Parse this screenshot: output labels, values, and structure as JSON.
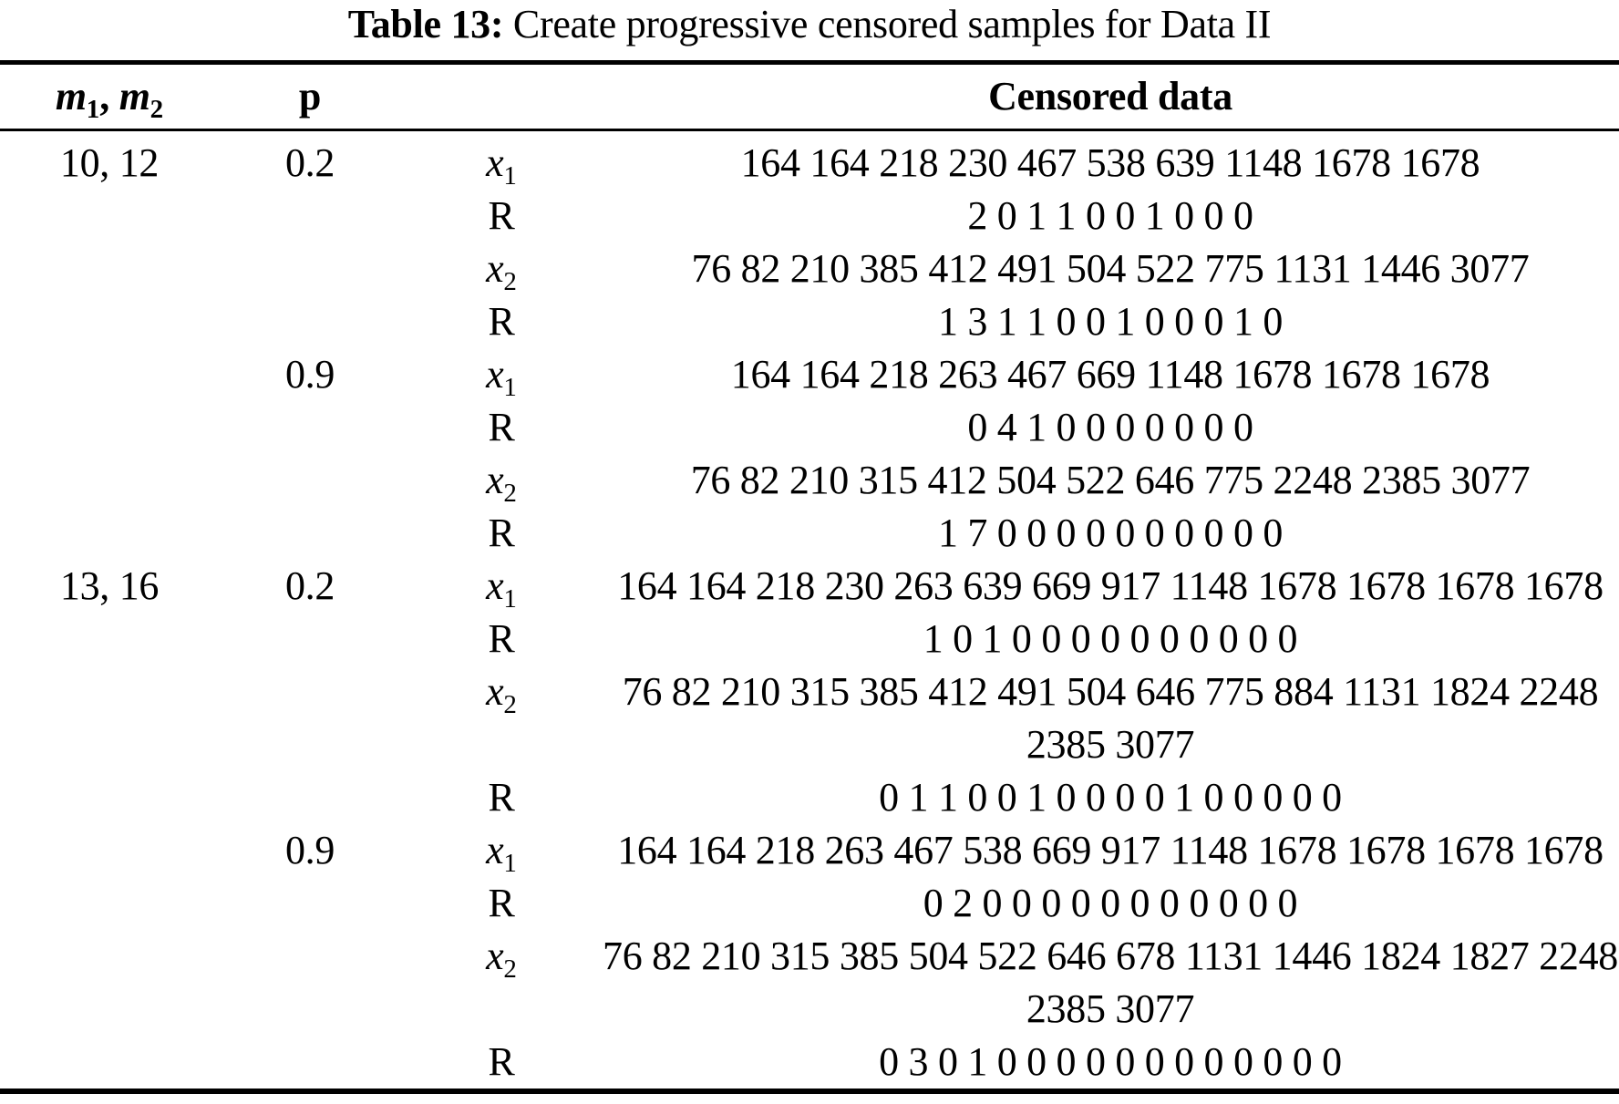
{
  "colors": {
    "text": "#000000",
    "background": "#ffffff"
  },
  "title": {
    "bold": "Table 13:",
    "rest": " Create progressive censored samples for Data II"
  },
  "header": {
    "m_base1": "m",
    "m_sub1": "1",
    "m_sep": ", ",
    "m_base2": "m",
    "m_sub2": "2",
    "p": "p",
    "censored": "Censored data"
  },
  "groups": [
    {
      "m": "10, 12",
      "subgroups": [
        {
          "p": "0.2",
          "rows": [
            {
              "var": "x",
              "sub": "1",
              "line1": "164 164 218 230 467 538 639 1148 1678 1678"
            },
            {
              "var": "R",
              "sub": "",
              "line1": "2 0 1 1 0 0 1 0 0 0"
            },
            {
              "var": "x",
              "sub": "2",
              "line1": "76 82 210 385 412 491 504 522 775 1131 1446 3077"
            },
            {
              "var": "R",
              "sub": "",
              "line1": "1 3 1 1 0 0 1 0 0 0 1 0"
            }
          ]
        },
        {
          "p": "0.9",
          "rows": [
            {
              "var": "x",
              "sub": "1",
              "line1": "164 164 218 263 467 669 1148 1678 1678 1678"
            },
            {
              "var": "R",
              "sub": "",
              "line1": "0 4 1 0 0 0 0 0 0 0"
            },
            {
              "var": "x",
              "sub": "2",
              "line1": "76 82 210 315 412 504 522 646 775 2248 2385 3077"
            },
            {
              "var": "R",
              "sub": "",
              "line1": "1 7 0 0 0 0 0 0 0 0 0 0"
            }
          ]
        }
      ]
    },
    {
      "m": "13, 16",
      "subgroups": [
        {
          "p": "0.2",
          "rows": [
            {
              "var": "x",
              "sub": "1",
              "line1": "164 164 218 230 263 639 669 917 1148 1678 1678 1678 1678"
            },
            {
              "var": "R",
              "sub": "",
              "line1": "1 0 1 0 0 0 0 0 0 0 0 0 0"
            },
            {
              "var": "x",
              "sub": "2",
              "line1": "76 82 210 315 385 412 491 504 646 775 884 1131 1824 2248",
              "line2": "2385 3077"
            },
            {
              "var": "R",
              "sub": "",
              "line1": "0 1 1 0 0 1 0 0 0 0 1 0 0 0 0 0"
            }
          ]
        },
        {
          "p": "0.9",
          "rows": [
            {
              "var": "x",
              "sub": "1",
              "line1": "164 164 218 263 467 538 669 917 1148 1678 1678 1678 1678"
            },
            {
              "var": "R",
              "sub": "",
              "line1": "0 2 0 0 0 0 0 0 0 0 0 0 0"
            },
            {
              "var": "x",
              "sub": "2",
              "line1": "76 82 210 315 385 504 522 646 678 1131 1446 1824 1827 2248",
              "line2": "2385 3077"
            },
            {
              "var": "R",
              "sub": "",
              "line1": "0 3 0 1 0 0 0 0 0 0 0 0 0 0 0 0"
            }
          ]
        }
      ]
    }
  ]
}
